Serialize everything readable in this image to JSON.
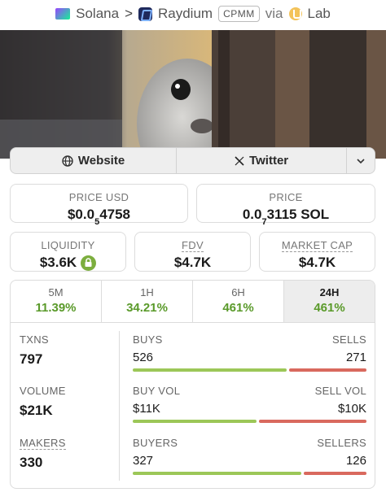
{
  "breadcrumb": {
    "chain": "Solana",
    "separator": ">",
    "dex": "Raydium",
    "pool_type": "CPMM",
    "via": "via",
    "launchpad": "Lab"
  },
  "links": {
    "website": "Website",
    "twitter": "Twitter",
    "more_icon": "chevron-down-icon"
  },
  "price": {
    "usd_label": "PRICE USD",
    "usd_prefix": "$0.0",
    "usd_zeros": "5",
    "usd_digits": "4758",
    "native_label": "PRICE",
    "native_prefix": "0.0",
    "native_zeros": "7",
    "native_digits": "3115 SOL"
  },
  "metrics": {
    "liquidity_label": "LIQUIDITY",
    "liquidity_value": "$3.6K",
    "fdv_label": "FDV",
    "fdv_value": "$4.7K",
    "mcap_label": "MARKET CAP",
    "mcap_value": "$4.7K"
  },
  "timeframes": [
    {
      "label": "5M",
      "change": "11.39%"
    },
    {
      "label": "1H",
      "change": "34.21%"
    },
    {
      "label": "6H",
      "change": "461%"
    },
    {
      "label": "24H",
      "change": "461%"
    }
  ],
  "active_timeframe": "24H",
  "stats": {
    "txns": {
      "label": "TXNS",
      "value": "797",
      "left_label": "BUYS",
      "left_value": "526",
      "right_label": "SELLS",
      "right_value": "271",
      "buy_fraction": 0.66
    },
    "volume": {
      "label": "VOLUME",
      "value": "$21K",
      "left_label": "BUY VOL",
      "left_value": "$11K",
      "right_label": "SELL VOL",
      "right_value": "$10K",
      "buy_fraction": 0.53
    },
    "makers": {
      "label": "MAKERS",
      "value": "330",
      "left_label": "BUYERS",
      "left_value": "327",
      "right_label": "SELLERS",
      "right_value": "126",
      "buy_fraction": 0.72
    }
  },
  "colors": {
    "positive": "#5a9a2a",
    "buy_bar": "#9cc758",
    "sell_bar": "#d9695e"
  }
}
